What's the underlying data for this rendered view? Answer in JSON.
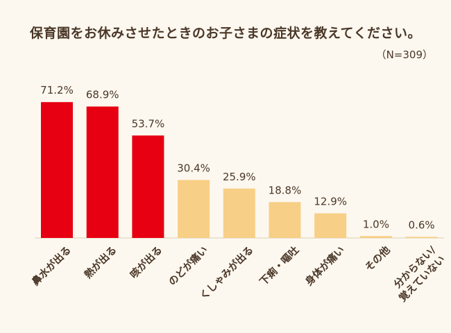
{
  "chart_data": {
    "type": "bar",
    "title": "保育園をお休みさせたときのお子さまの症状を教えてください。",
    "note": "（N=309）",
    "categories": [
      "鼻水が出る",
      "熱が出る",
      "咳が出る",
      "のどが痛い",
      "くしゃみが出る",
      "下痢・嘔吐",
      "身体が痛い",
      "その他",
      "分からない/\n覚えていない"
    ],
    "values": [
      71.2,
      68.9,
      53.7,
      30.4,
      25.9,
      18.8,
      12.9,
      1.0,
      0.6
    ],
    "value_labels": [
      "71.2%",
      "68.9%",
      "53.7%",
      "30.4%",
      "25.9%",
      "18.8%",
      "12.9%",
      "1.0%",
      "0.6%"
    ],
    "highlight_count": 3,
    "colors": {
      "highlight": "#e60012",
      "normal": "#f8cf86",
      "text": "#4a3728",
      "background": "#fdf8ef",
      "baseline": "#d9cbb0"
    },
    "grid": false,
    "legend": "none"
  }
}
